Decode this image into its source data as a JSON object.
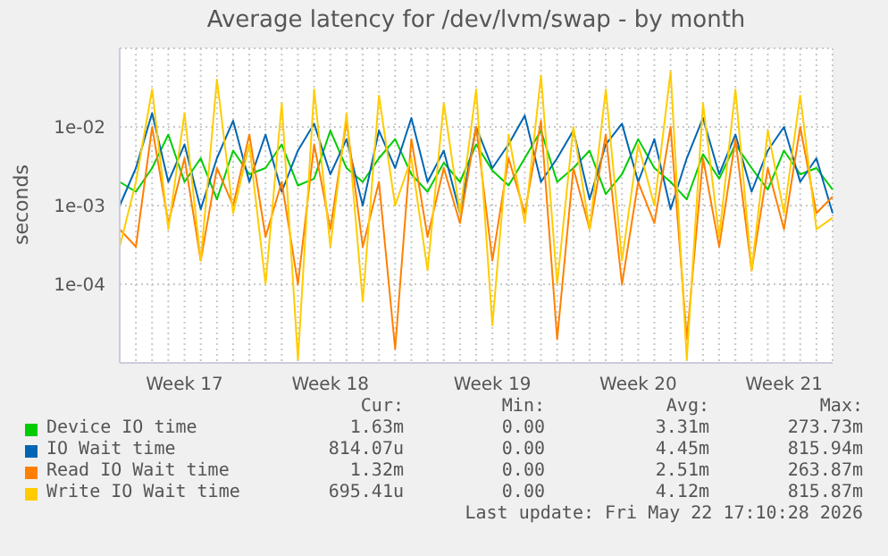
{
  "chart_data": {
    "type": "line",
    "title": "Average latency for /dev/lvm/swap - by month",
    "ylabel": "seconds",
    "log": true,
    "grid": true,
    "legend": "bottom",
    "ylim": [
      1e-05,
      0.1
    ],
    "yticks": [
      {
        "value": 0.0001,
        "label": "1e-04"
      },
      {
        "value": 0.001,
        "label": "1e-03"
      },
      {
        "value": 0.01,
        "label": "1e-02"
      }
    ],
    "categories": [
      null,
      null,
      null,
      null,
      "Week 17",
      null,
      null,
      null,
      null,
      null,
      null,
      null,
      null,
      "Week 18",
      null,
      null,
      null,
      null,
      null,
      null,
      null,
      null,
      null,
      "Week 19",
      null,
      null,
      null,
      null,
      null,
      null,
      null,
      null,
      "Week 20",
      null,
      null,
      null,
      null,
      null,
      null,
      null,
      null,
      "Week 21",
      null,
      null,
      null
    ],
    "series": [
      {
        "name": "Device IO time",
        "color": "#00cc00",
        "values": [
          0.002,
          0.0015,
          0.003,
          0.008,
          0.002,
          0.004,
          0.0012,
          0.005,
          0.0025,
          0.003,
          0.006,
          0.0018,
          0.0022,
          0.009,
          0.003,
          0.002,
          0.004,
          0.007,
          0.0025,
          0.0015,
          0.0035,
          0.002,
          0.006,
          0.0028,
          0.0018,
          0.004,
          0.009,
          0.002,
          0.003,
          0.005,
          0.0014,
          0.0025,
          0.007,
          0.003,
          0.002,
          0.0012,
          0.0045,
          0.0022,
          0.006,
          0.003,
          0.0016,
          0.005,
          0.0025,
          0.003,
          0.0016
        ]
      },
      {
        "name": "IO Wait time",
        "color": "#0066b3",
        "values": [
          0.001,
          0.003,
          0.015,
          0.002,
          0.006,
          0.0009,
          0.004,
          0.012,
          0.002,
          0.008,
          0.0015,
          0.005,
          0.011,
          0.0025,
          0.007,
          0.001,
          0.009,
          0.003,
          0.013,
          0.002,
          0.005,
          0.0008,
          0.01,
          0.003,
          0.006,
          0.014,
          0.002,
          0.004,
          0.009,
          0.0012,
          0.006,
          0.011,
          0.002,
          0.007,
          0.0009,
          0.004,
          0.013,
          0.0025,
          0.008,
          0.0015,
          0.005,
          0.01,
          0.002,
          0.004,
          0.0008
        ]
      },
      {
        "name": "Read IO Wait time",
        "color": "#ff8000",
        "values": [
          0.0005,
          0.0003,
          0.01,
          0.0006,
          0.004,
          0.0002,
          0.003,
          0.001,
          0.008,
          0.0004,
          0.002,
          0.0001,
          0.006,
          0.0005,
          0.012,
          0.0003,
          0.002,
          1.5e-05,
          0.007,
          0.0004,
          0.003,
          0.0006,
          0.01,
          0.0002,
          0.004,
          0.0008,
          0.012,
          2e-05,
          0.003,
          0.0005,
          0.008,
          0.0001,
          0.002,
          0.0006,
          0.01,
          2e-05,
          0.004,
          0.0003,
          0.007,
          0.00015,
          0.003,
          0.0005,
          0.01,
          0.0008,
          0.0013
        ]
      },
      {
        "name": "Write IO Wait time",
        "color": "#ffcc00",
        "values": [
          0.0003,
          0.002,
          0.03,
          0.0005,
          0.015,
          0.0002,
          0.04,
          0.0008,
          0.006,
          0.0001,
          0.02,
          1.1e-05,
          0.03,
          0.0003,
          0.015,
          6e-05,
          0.025,
          0.001,
          0.004,
          0.00015,
          0.02,
          0.0008,
          0.03,
          3e-05,
          0.008,
          0.0006,
          0.045,
          0.0001,
          0.01,
          0.0005,
          0.03,
          0.0002,
          0.006,
          0.001,
          0.05,
          1.1e-05,
          0.02,
          0.0004,
          0.03,
          0.00015,
          0.009,
          0.0008,
          0.025,
          0.0005,
          0.0007
        ]
      }
    ],
    "annotations": [
      "Cur:",
      "Min:",
      "Avg:",
      "Max:",
      "1.63m",
      "0.00",
      "3.31m",
      "273.73m",
      "814.07u",
      "0.00",
      "4.45m",
      "815.94m",
      "1.32m",
      "0.00",
      "2.51m",
      "263.87m",
      "695.41u",
      "0.00",
      "4.12m",
      "815.87m",
      "Last update: Fri May 22 17:10:28 2026"
    ]
  }
}
